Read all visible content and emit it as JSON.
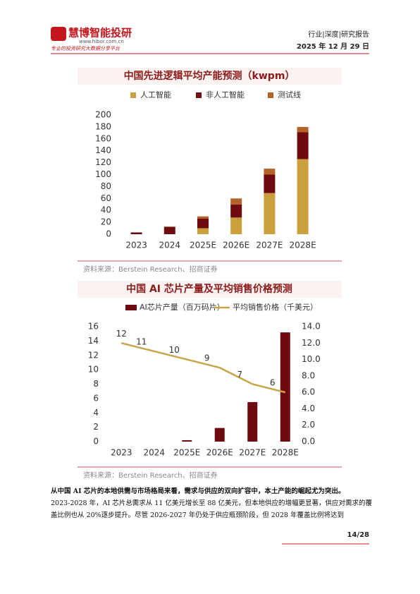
{
  "header": {
    "logo": "慧博智能投研",
    "site": "www.hibor.com.cn",
    "tagline": "专业的投资研究大数据分享平台",
    "category": "行业|深度|研究报告",
    "date": "2025 年 12 月 29 日"
  },
  "chart_data": [
    {
      "type": "stacked-bar",
      "title": "中国先进逻辑平均产能预测（kwpm）",
      "categories": [
        "2023",
        "2024",
        "2025E",
        "2026E",
        "2027E",
        "2028E"
      ],
      "series": [
        {
          "name": "人工智能",
          "color": "#c9a03c",
          "values": [
            0,
            0,
            10,
            28,
            69,
            126
          ]
        },
        {
          "name": "非人工智能",
          "color": "#6e0b10",
          "values": [
            3,
            12,
            16,
            22,
            31,
            45
          ]
        },
        {
          "name": "测试线",
          "color": "#b4632a",
          "values": [
            0,
            1,
            4,
            10,
            10,
            9
          ]
        }
      ],
      "ylim": [
        0,
        200
      ],
      "yticks": [
        0,
        20,
        40,
        60,
        80,
        100,
        120,
        140,
        160,
        180,
        200
      ],
      "source": "资料来源：Berstein Research、招商证券"
    },
    {
      "type": "bar-line",
      "title": "中国 AI 芯片产量及平均销售价格预测",
      "categories": [
        "2023",
        "2024",
        "2025E",
        "2026E",
        "2027E",
        "2028E"
      ],
      "series": [
        {
          "name": "AI芯片产量（百万码片）",
          "color": "#6e0b10",
          "values": [
            0,
            0,
            0.2,
            1.9,
            5.5,
            15.2
          ]
        },
        {
          "name": "平均销售价格（千美元）",
          "color": "#c9a54a",
          "axis": "y2",
          "values": [
            12,
            11,
            10,
            9,
            7,
            6
          ]
        }
      ],
      "ylim": [
        0,
        16
      ],
      "yticks": [
        0,
        2,
        4,
        6,
        8,
        10,
        12,
        14,
        16
      ],
      "y2lim": [
        0,
        14
      ],
      "y2ticks": [
        {
          "value": 0,
          "label": "0.0"
        },
        {
          "value": 2,
          "label": "2.0"
        },
        {
          "value": 4,
          "label": "4.0"
        },
        {
          "value": 6,
          "label": "6.0"
        },
        {
          "value": 8,
          "label": "8.0"
        },
        {
          "value": 10,
          "label": "10.0"
        },
        {
          "value": 12,
          "label": "12.0"
        },
        {
          "value": 14,
          "label": "14.0"
        }
      ],
      "source": "资料来源：Berstein Research、招商证券"
    }
  ],
  "body": {
    "lead": "从中国 AI 芯片的本地供需与市场格局来看，需求与供应的双向扩容中，本土产能的崛起尤为突出。",
    "text": "2023-2028 年，AI 芯片总需求从 11 亿美元增长至 88 亿美元，但本地供应的增幅更显著，供应对需求的覆盖比例也从 20%逐步提升。尽管 2026-2027 年仍处于供应瓶颈阶段，但 2028 年覆盖比例将达到"
  },
  "page_number": "14/28"
}
